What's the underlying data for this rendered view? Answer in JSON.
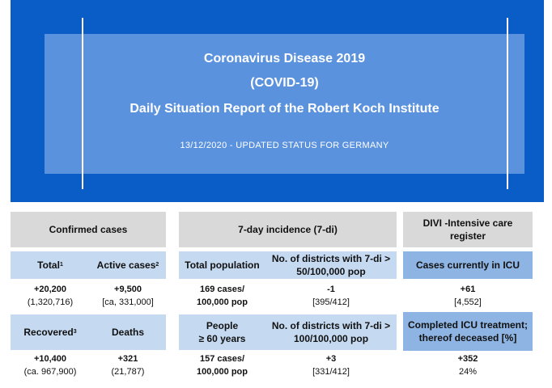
{
  "banner": {
    "title1": "Coronavirus Disease 2019",
    "title2": "(COVID-19)",
    "title3": "Daily Situation Report of the Robert Koch Institute",
    "date": "13/12/2020 - UPDATED STATUS FOR GERMANY"
  },
  "confirmed": {
    "header": "Confirmed cases",
    "total_label": "Total",
    "total_sup": "1",
    "active_label": "Active cases",
    "active_sup": "2",
    "total_value": "+20,200",
    "total_sub": "(1,320,716)",
    "active_value": "+9,500",
    "active_sub": "[ca, 331,000]",
    "recovered_label": "Recovered",
    "recovered_sup": "3",
    "deaths_label": "Deaths",
    "recovered_value": "+10,400",
    "recovered_sub": "(ca. 967,900)",
    "deaths_value": "+321",
    "deaths_sub": "(21,787)"
  },
  "incidence": {
    "header": "7-day incidence (7-di)",
    "total_pop_label": "Total population",
    "districts50_label": "No. of districts with 7-di > 50/100,000 pop",
    "total_pop_value1": "169 cases/",
    "total_pop_value2": "100,000 pop",
    "districts50_value": "-1",
    "districts50_sub": "[395/412]",
    "people60_label1": "People",
    "people60_label2": "≥ 60 years",
    "districts100_label": "No. of districts with 7-di > 100/100,000 pop",
    "people60_value1": "157 cases/",
    "people60_value2": "100,000 pop",
    "districts100_value": "+3",
    "districts100_sub": "[331/412]"
  },
  "divi": {
    "header": "DIVI -Intensive care register",
    "icu_label": "Cases currently in ICU",
    "icu_value": "+61",
    "icu_sub": "[4,552]",
    "completed_label": "Completed ICU treatment; thereof deceased [%]",
    "completed_value": "+352",
    "completed_sub": "24%"
  },
  "colors": {
    "banner_dark": "#0a5cc6",
    "banner_light": "#5b92dd",
    "header_gray": "#d9d9d9",
    "label_lightblue": "#c5d9f1",
    "label_midblue": "#8db4e2"
  }
}
